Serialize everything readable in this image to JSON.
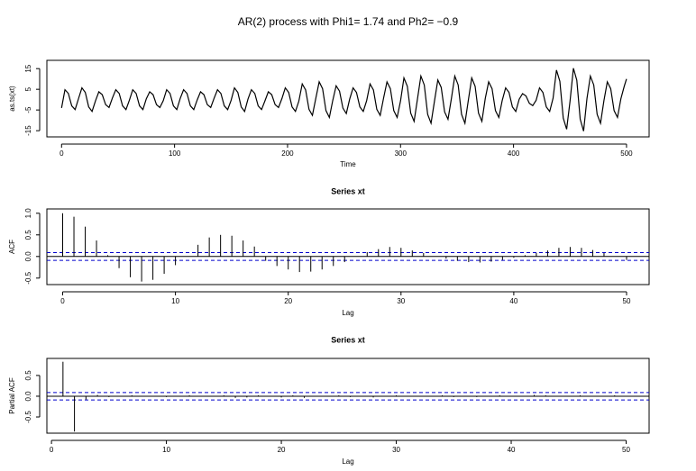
{
  "title": "AR(2) process with Phi1= 1.74 and Ph2= −0.9",
  "chart_data": [
    {
      "type": "line",
      "ylabel": "as.ts(xt)",
      "xlabel": "Time",
      "color": "#000000",
      "xlim": [
        -13,
        520
      ],
      "ylim": [
        -18,
        19
      ],
      "xticks": [
        0,
        100,
        200,
        300,
        400,
        500
      ],
      "yticks": [
        -15,
        -5,
        5,
        15
      ],
      "x": [
        0,
        3,
        6,
        9,
        12,
        15,
        18,
        21,
        24,
        27,
        30,
        33,
        36,
        39,
        42,
        45,
        48,
        51,
        54,
        57,
        60,
        63,
        66,
        69,
        72,
        75,
        78,
        81,
        84,
        87,
        90,
        93,
        96,
        99,
        102,
        105,
        108,
        111,
        114,
        117,
        120,
        123,
        126,
        129,
        132,
        135,
        138,
        141,
        144,
        147,
        150,
        153,
        156,
        159,
        162,
        165,
        168,
        171,
        174,
        177,
        180,
        183,
        186,
        189,
        192,
        195,
        198,
        201,
        204,
        207,
        210,
        213,
        216,
        219,
        222,
        225,
        228,
        231,
        234,
        237,
        240,
        243,
        246,
        249,
        252,
        255,
        258,
        261,
        264,
        267,
        270,
        273,
        276,
        279,
        282,
        285,
        288,
        291,
        294,
        297,
        300,
        303,
        306,
        309,
        312,
        315,
        318,
        321,
        324,
        327,
        330,
        333,
        336,
        339,
        342,
        345,
        348,
        351,
        354,
        357,
        360,
        363,
        366,
        369,
        372,
        375,
        378,
        381,
        384,
        387,
        390,
        393,
        396,
        399,
        402,
        405,
        408,
        411,
        414,
        417,
        420,
        423,
        426,
        429,
        432,
        435,
        438,
        441,
        444,
        447,
        450,
        453,
        456,
        459,
        462,
        465,
        468,
        471,
        474,
        477,
        480,
        483,
        486,
        489,
        492,
        495,
        498,
        500
      ],
      "values": [
        -4,
        4.8,
        3,
        -3,
        -4.8,
        0.5,
        5.7,
        3.5,
        -3.5,
        -5.7,
        -0.6,
        3.8,
        2.4,
        -2.4,
        -3.8,
        0.8,
        4.8,
        3,
        -3,
        -4.8,
        -0.3,
        4.8,
        3,
        -3,
        -4.8,
        0.4,
        3.8,
        2.4,
        -2.4,
        -3.8,
        -0.5,
        4.8,
        3,
        -3,
        -4.8,
        0.6,
        4.8,
        3,
        -3,
        -4.8,
        -0.2,
        3.8,
        2.4,
        -2.4,
        -3.8,
        0.7,
        4.8,
        3,
        -3,
        -4.8,
        -0.4,
        5.7,
        3.5,
        -3.5,
        -5.7,
        0.3,
        4.8,
        3,
        -3,
        -4.8,
        -0.6,
        3.8,
        2.4,
        -2.4,
        -3.8,
        0.5,
        5.7,
        3.5,
        -3.5,
        -5.7,
        -0.7,
        7.6,
        4.7,
        -4.7,
        -7.6,
        0.6,
        8.6,
        5.3,
        -5.3,
        -8.6,
        -0.4,
        6.7,
        4.1,
        -4.1,
        -6.7,
        0.3,
        5.7,
        3.5,
        -3.5,
        -5.7,
        -0.5,
        7.6,
        4.7,
        -4.7,
        -7.6,
        0.8,
        8.6,
        5.3,
        -5.3,
        -8.6,
        -0.6,
        10.5,
        6.5,
        -6.5,
        -10.5,
        0.4,
        11.4,
        7.1,
        -7.1,
        -11.4,
        -0.8,
        9.5,
        5.9,
        -5.9,
        -9.5,
        0.5,
        11.4,
        7.1,
        -7.1,
        -11.4,
        -0.3,
        10.5,
        6.5,
        -6.5,
        -10.5,
        0.6,
        8.6,
        5.3,
        -5.3,
        -8.6,
        -0.4,
        5.7,
        3.5,
        -3.5,
        -5.7,
        0.2,
        2.9,
        1.8,
        -1.8,
        -2.9,
        -0.3,
        5.7,
        3.5,
        -3.5,
        -5.7,
        0.7,
        14.3,
        8.9,
        -8.9,
        -14.3,
        -0.8,
        15.2,
        9.4,
        -9.4,
        -15.2,
        0.6,
        11.4,
        7.1,
        -7.1,
        -11.4,
        -0.5,
        8.6,
        5.3,
        -5.3,
        -8.6,
        0.4,
        6.5,
        10
      ]
    },
    {
      "type": "acf",
      "title": "Series  xt",
      "ylabel": "ACF",
      "xlabel": "Lag",
      "color": "#000000",
      "ci_color": "#0000cc",
      "ci": 0.089,
      "xlim": [
        -1.4,
        52
      ],
      "ylim": [
        -0.65,
        1.1
      ],
      "xticks": [
        0,
        10,
        20,
        30,
        40,
        50
      ],
      "yticks": [
        -0.5,
        {
          "value": 0,
          "label": "0.0"
        },
        0.5,
        {
          "value": 1,
          "label": "1.0"
        }
      ],
      "x": [
        0,
        1,
        2,
        3,
        4,
        5,
        6,
        7,
        8,
        9,
        10,
        11,
        12,
        13,
        14,
        15,
        16,
        17,
        18,
        19,
        20,
        21,
        22,
        23,
        24,
        25,
        26,
        27,
        28,
        29,
        30,
        31,
        32,
        33,
        34,
        35,
        36,
        37,
        38,
        39,
        40,
        41,
        42,
        43,
        44,
        45,
        46,
        47,
        48,
        49,
        50
      ],
      "values": [
        1,
        0.92,
        0.69,
        0.37,
        0.03,
        -0.27,
        -0.48,
        -0.58,
        -0.54,
        -0.4,
        -0.2,
        0,
        0.27,
        0.44,
        0.5,
        0.48,
        0.37,
        0.23,
        -0.1,
        -0.22,
        -0.3,
        -0.36,
        -0.35,
        -0.3,
        -0.22,
        -0.13,
        0,
        0.1,
        0.17,
        0.22,
        0.2,
        0.14,
        0.08,
        0,
        -0.05,
        -0.1,
        -0.13,
        -0.14,
        -0.12,
        -0.08,
        -0.03,
        0.03,
        0.08,
        0.14,
        0.2,
        0.22,
        0.2,
        0.15,
        0.08,
        0,
        -0.08
      ]
    },
    {
      "type": "acf",
      "title": "Series  xt",
      "ylabel": "Partial ACF",
      "xlabel": "Lag",
      "color": "#000000",
      "ci_color": "#0000cc",
      "ci": 0.089,
      "xlim": [
        -0.4,
        52
      ],
      "ylim": [
        -0.89,
        0.91
      ],
      "xticks": [
        0,
        10,
        20,
        30,
        40,
        50
      ],
      "yticks": [
        -0.5,
        {
          "value": 0,
          "label": "0.0"
        },
        0.5
      ],
      "x": [
        1,
        2,
        3,
        4,
        5,
        6,
        7,
        8,
        9,
        10,
        11,
        12,
        13,
        14,
        15,
        16,
        17,
        18,
        19,
        20,
        21,
        22,
        23,
        24,
        25,
        26,
        27,
        28,
        29,
        30,
        31,
        32,
        33,
        34,
        35,
        36,
        37,
        38,
        39,
        40,
        41,
        42,
        43,
        44,
        45,
        46,
        47,
        48,
        49,
        50
      ],
      "values": [
        0.83,
        -0.85,
        -0.08,
        0.03,
        -0.02,
        0.01,
        0.02,
        -0.01,
        0.01,
        -0.02,
        0.01,
        0.02,
        -0.01,
        0.01,
        0.02,
        -0.04,
        -0.03,
        0.02,
        -0.01,
        -0.03,
        0.02,
        -0.04,
        0.01,
        0.01,
        0.02,
        -0.02,
        0.01,
        -0.03,
        0.01,
        0.02,
        0.01,
        -0.01,
        0.01,
        0.02,
        -0.02,
        0.01,
        -0.02,
        0.01,
        0.02,
        -0.01,
        0.01,
        0.03,
        0.02,
        -0.01,
        0.01,
        0.02,
        -0.01,
        0.01,
        0.02,
        -0.01
      ]
    }
  ]
}
